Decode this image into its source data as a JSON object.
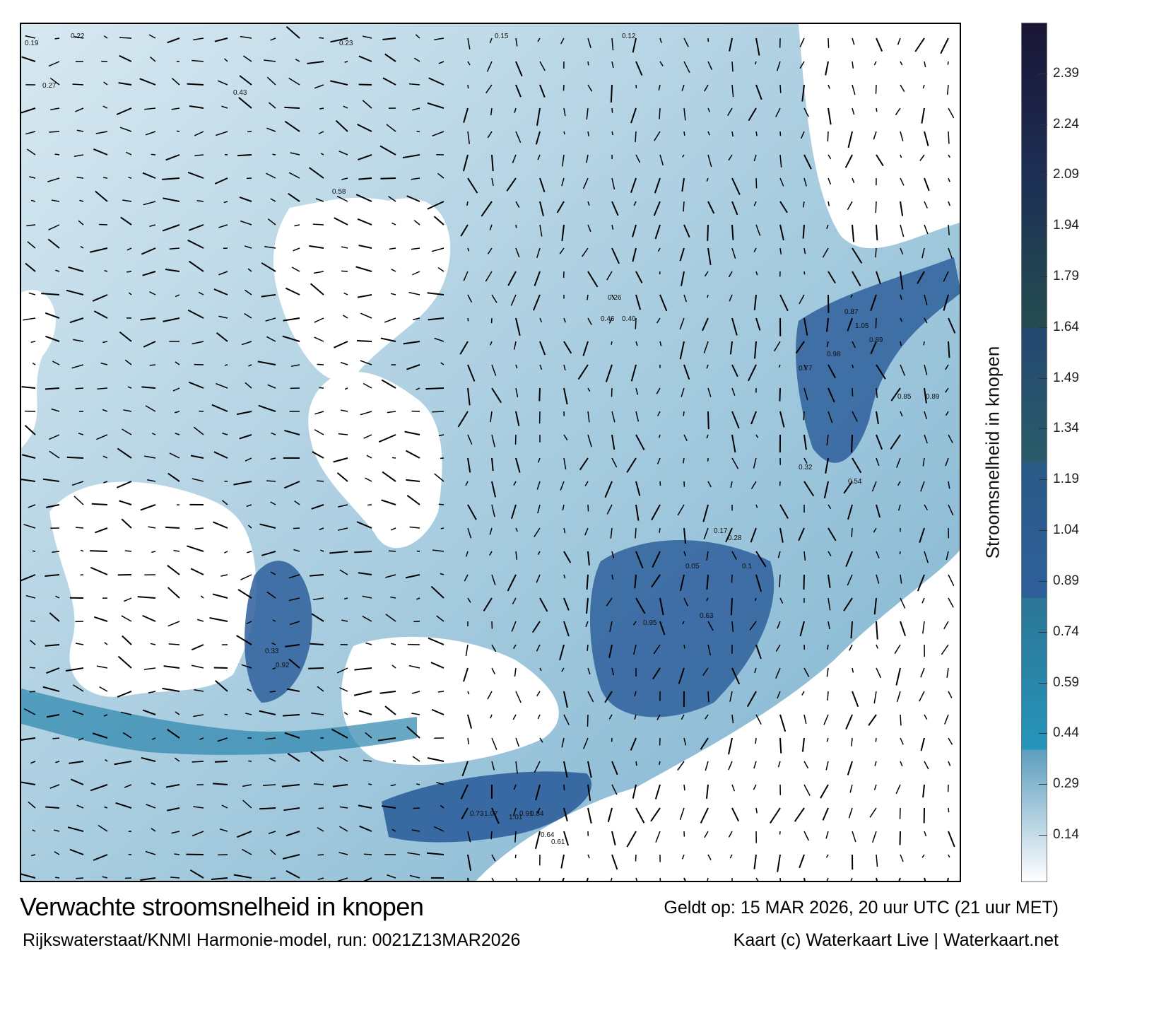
{
  "map": {
    "sample_labels": [
      "0.19",
      "0.22",
      "0.23",
      "0.15",
      "0.12",
      "0.27",
      "0.43",
      "0.58",
      "0.26",
      "0.46",
      "0.40",
      "0.33",
      "0.92",
      "0.95",
      "0.87",
      "1.05",
      "0.89",
      "0.98",
      "0.77",
      "0.73",
      "1.07",
      "1.01",
      "0.91",
      "0.84",
      "0.64",
      "0.61",
      "0.85",
      "0.89",
      "0.54",
      "0.28",
      "0.17",
      "0.05",
      "0.1",
      "0.32",
      "0.63"
    ]
  },
  "colorbar": {
    "title": "Stroomsnelheid in knopen",
    "ticks": [
      "2.39",
      "2.24",
      "2.09",
      "1.94",
      "1.79",
      "1.64",
      "1.49",
      "1.34",
      "1.19",
      "1.04",
      "0.89",
      "0.74",
      "0.59",
      "0.44",
      "0.29",
      "0.14"
    ],
    "tick_values": [
      2.39,
      2.24,
      2.09,
      1.94,
      1.79,
      1.64,
      1.49,
      1.34,
      1.19,
      1.04,
      0.89,
      0.74,
      0.59,
      0.44,
      0.29,
      0.14
    ],
    "range": [
      0,
      2.54
    ],
    "colors": [
      "#ffffff",
      "#5d9dbf",
      "#2695bb",
      "#2b7595",
      "#2e5f9b",
      "#2a5a86",
      "#2a5b6a",
      "#234870",
      "#244d50",
      "#1c2f55",
      "#1a1535"
    ]
  },
  "footer": {
    "title": "Verwachte stroomsnelheid in knopen",
    "valid": "Geldt op: 15 MAR 2026, 20 uur UTC (21 uur MET)",
    "source": "Rijkswaterstaat/KNMI Harmonie-model, run: 0021Z13MAR2026",
    "credit": "Kaart (c) Waterkaart Live | Waterkaart.net"
  }
}
